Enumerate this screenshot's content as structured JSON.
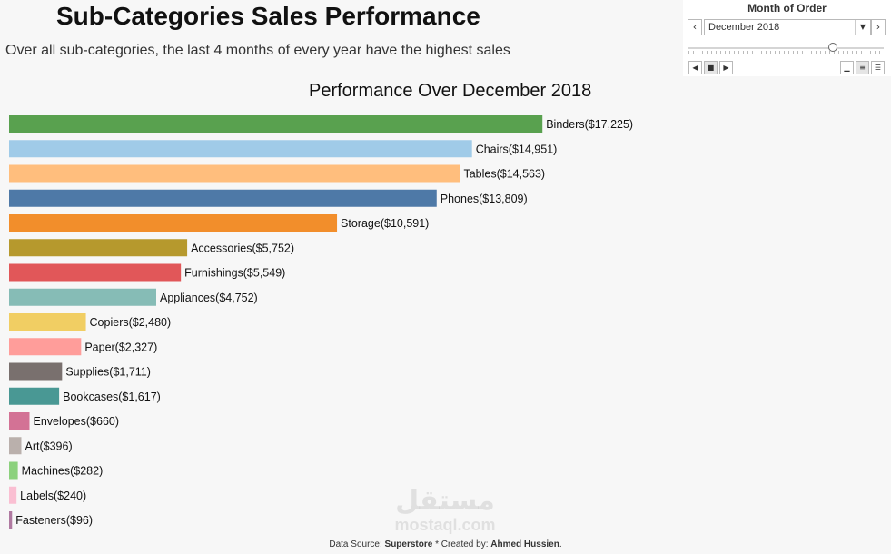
{
  "header": {
    "title": "Sub-Categories Sales Performance",
    "subtitle": "Over all sub-categories, the last 4 months of every year have the highest sales"
  },
  "filter": {
    "title": "Month of Order",
    "selected": "December 2018",
    "slider_position": 0.74,
    "prev_icon": "chevron-left-icon",
    "next_icon": "chevron-right-icon",
    "dropdown_icon": "caret-down-icon"
  },
  "footer": {
    "source_label": "Data Source:",
    "source_value": "Superstore",
    "separator": "* Created by:",
    "author": "Ahmed Hussien",
    "end": "."
  },
  "watermark": {
    "arabic": "مستقل",
    "latin": "mostaql.com"
  },
  "chart_data": {
    "type": "bar",
    "orientation": "horizontal",
    "title": "Performance Over December 2018",
    "xlim": [
      0,
      22000
    ],
    "categories": [
      "Binders",
      "Chairs",
      "Tables",
      "Phones",
      "Storage",
      "Accessories",
      "Furnishings",
      "Appliances",
      "Copiers",
      "Paper",
      "Supplies",
      "Bookcases",
      "Envelopes",
      "Art",
      "Machines",
      "Labels",
      "Fasteners"
    ],
    "values": [
      17225,
      14951,
      14563,
      13809,
      10591,
      5752,
      5549,
      4752,
      2480,
      2327,
      1711,
      1617,
      660,
      396,
      282,
      240,
      96
    ],
    "labels": [
      "Binders($17,225)",
      "Chairs($14,951)",
      "Tables($14,563)",
      "Phones($13,809)",
      "Storage($10,591)",
      "Accessories($5,752)",
      "Furnishings($5,549)",
      "Appliances($4,752)",
      "Copiers($2,480)",
      "Paper($2,327)",
      "Supplies($1,711)",
      "Bookcases($1,617)",
      "Envelopes($660)",
      "Art($396)",
      "Machines($282)",
      "Labels($240)",
      "Fasteners($96)"
    ],
    "colors": [
      "#59a14f",
      "#a0cbe8",
      "#ffbe7d",
      "#4e79a7",
      "#f28e2b",
      "#b6992d",
      "#e15759",
      "#86bcb6",
      "#f1ce63",
      "#ff9d9a",
      "#79706e",
      "#499894",
      "#d37295",
      "#bab0ac",
      "#8cd17d",
      "#fabfd2",
      "#b07aa1"
    ],
    "grid": false,
    "legend": "none"
  }
}
